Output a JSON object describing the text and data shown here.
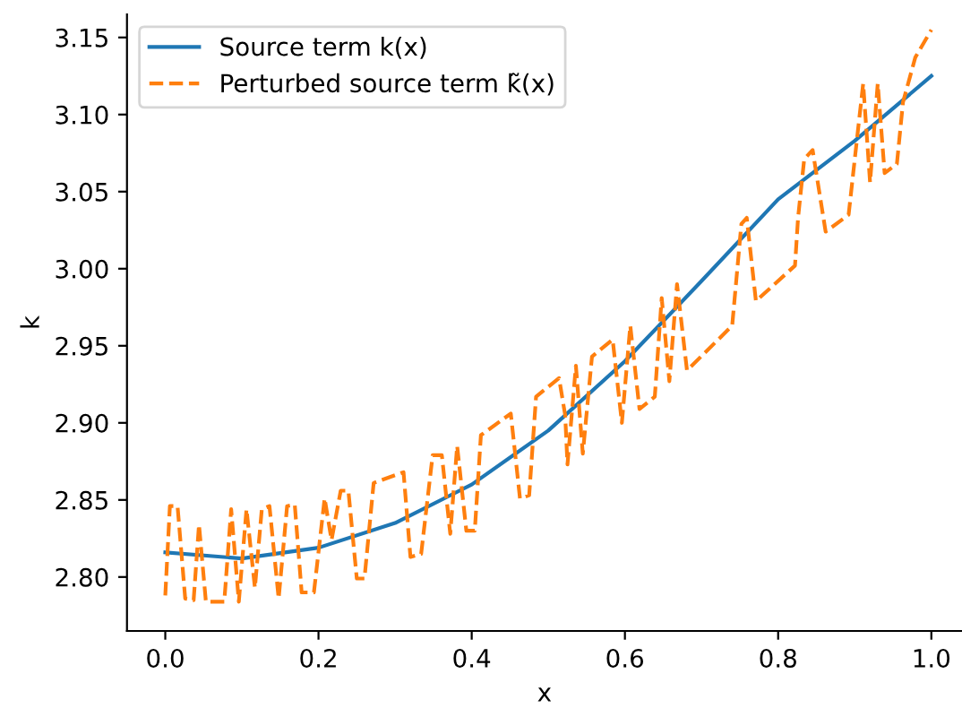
{
  "chart_data": {
    "type": "line",
    "xlabel": "x",
    "ylabel": "k",
    "xlim": [
      -0.05,
      1.04
    ],
    "ylim": [
      2.765,
      3.165
    ],
    "xticks": [
      {
        "value": 0,
        "label": "0.0"
      },
      0.2,
      0.4,
      0.6,
      0.8,
      {
        "value": 1,
        "label": "1.0"
      }
    ],
    "yticks": [
      {
        "value": 2.8,
        "label": "2.80"
      },
      2.85,
      {
        "value": 2.9,
        "label": "2.90"
      },
      2.95,
      {
        "value": 3.0,
        "label": "3.00"
      },
      3.05,
      {
        "value": 3.1,
        "label": "3.10"
      },
      3.15
    ],
    "grid": false,
    "legend": "top left",
    "marker": "none",
    "series": [
      {
        "name": "Source term k(x)",
        "color": "#1f77b4",
        "line_style": "solid",
        "x": [
          0,
          0.1,
          0.2,
          0.3,
          0.4,
          0.5,
          0.6,
          0.7,
          0.8,
          0.9,
          1.0
        ],
        "values": [
          2.816,
          2.812,
          2.819,
          2.835,
          2.86,
          2.895,
          2.94,
          2.992,
          3.045,
          3.083,
          3.125
        ]
      },
      {
        "name": "Perturbed source term k̃(x)",
        "color": "#ff7f0e",
        "line_style": "dashed",
        "x": [
          0.0,
          0.006,
          0.016,
          0.026,
          0.037,
          0.044,
          0.053,
          0.077,
          0.086,
          0.096,
          0.106,
          0.117,
          0.126,
          0.136,
          0.148,
          0.159,
          0.169,
          0.178,
          0.194,
          0.208,
          0.217,
          0.229,
          0.239,
          0.25,
          0.26,
          0.272,
          0.311,
          0.32,
          0.334,
          0.349,
          0.361,
          0.372,
          0.381,
          0.393,
          0.404,
          0.412,
          0.451,
          0.463,
          0.475,
          0.484,
          0.514,
          0.522,
          0.525,
          0.536,
          0.545,
          0.557,
          0.584,
          0.596,
          0.607,
          0.619,
          0.639,
          0.648,
          0.658,
          0.668,
          0.681,
          0.74,
          0.752,
          0.759,
          0.771,
          0.822,
          0.826,
          0.834,
          0.845,
          0.862,
          0.892,
          0.904,
          0.911,
          0.92,
          0.93,
          0.939,
          0.955,
          0.963,
          0.979,
          1.0
        ],
        "values": [
          2.788,
          2.846,
          2.846,
          2.786,
          2.785,
          2.834,
          2.784,
          2.784,
          2.844,
          2.784,
          2.844,
          2.793,
          2.844,
          2.846,
          2.786,
          2.846,
          2.847,
          2.79,
          2.79,
          2.851,
          2.824,
          2.856,
          2.856,
          2.799,
          2.799,
          2.861,
          2.868,
          2.813,
          2.815,
          2.879,
          2.879,
          2.828,
          2.885,
          2.83,
          2.83,
          2.892,
          2.906,
          2.851,
          2.853,
          2.917,
          2.929,
          2.905,
          2.873,
          2.937,
          2.88,
          2.943,
          2.954,
          2.9,
          2.963,
          2.909,
          2.917,
          2.981,
          2.927,
          2.99,
          2.934,
          2.963,
          3.029,
          3.033,
          2.979,
          3.002,
          3.033,
          3.071,
          3.077,
          3.024,
          3.035,
          3.089,
          3.12,
          3.056,
          3.12,
          3.062,
          3.068,
          3.108,
          3.137,
          3.155
        ]
      }
    ]
  }
}
